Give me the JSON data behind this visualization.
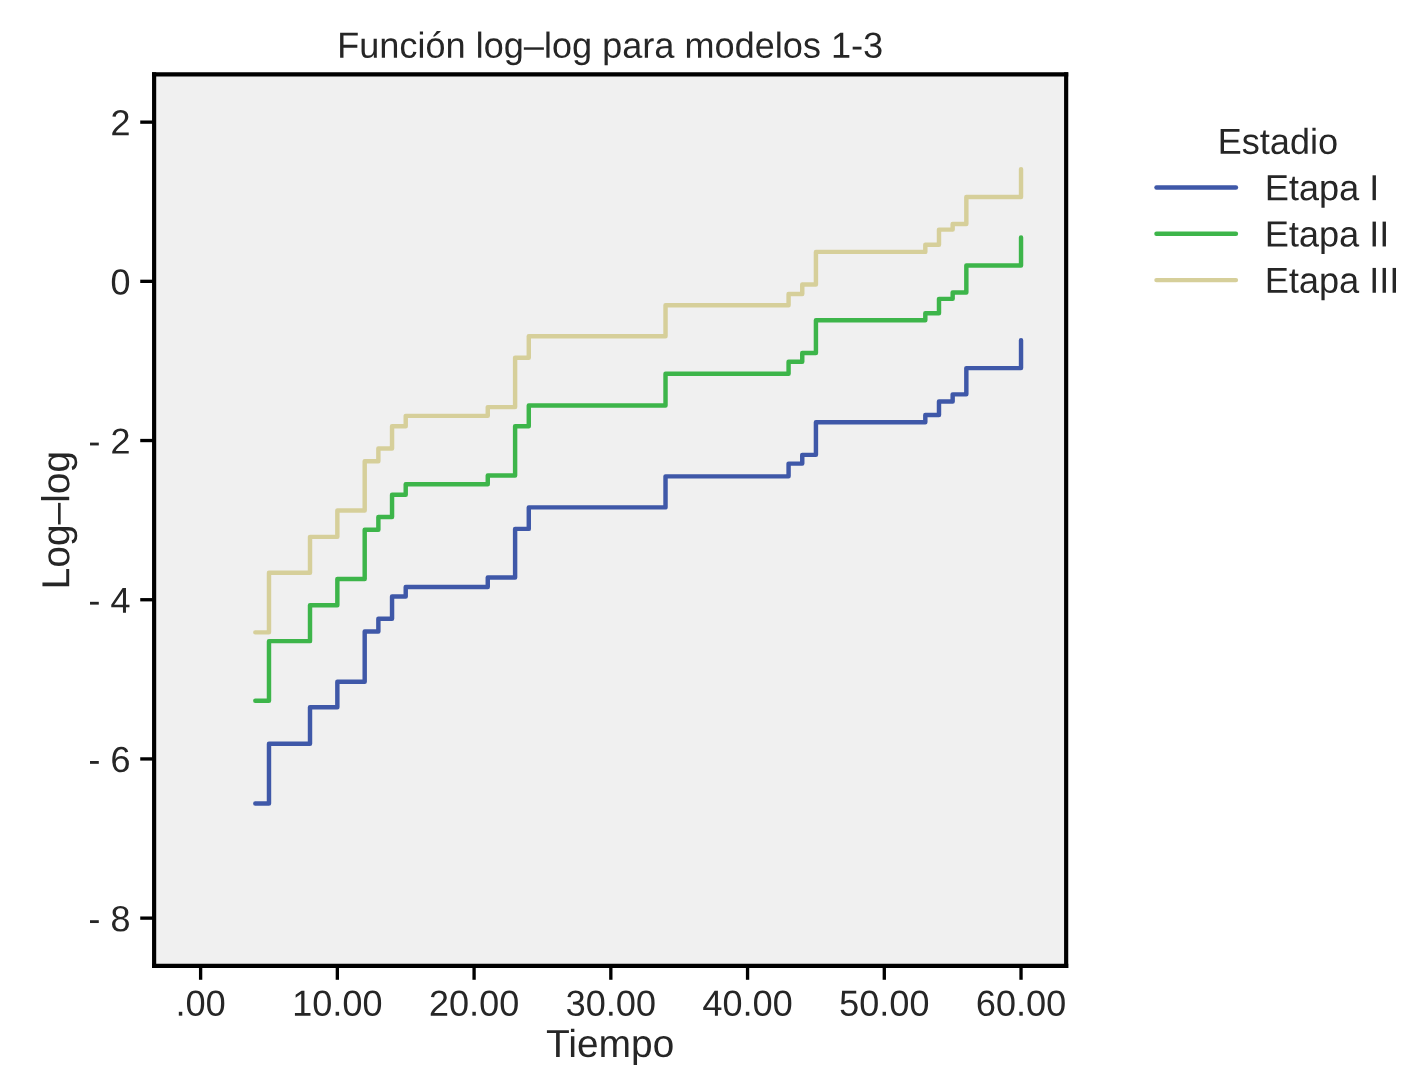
{
  "chart_data": {
    "type": "step",
    "title": "Función log–log para modelos 1-3",
    "xlabel": "Tiempo",
    "ylabel": "Log–log",
    "legend_title": "Estadio",
    "x": [
      4,
      5,
      8,
      10,
      12,
      13,
      14,
      15,
      21,
      23,
      24,
      34,
      43,
      44,
      45,
      53,
      54,
      55,
      56,
      60
    ],
    "series": [
      {
        "name": "Etapa I",
        "color": "#3f58a8",
        "values": [
          -6.56,
          -5.81,
          -5.35,
          -5.03,
          -4.4,
          -4.24,
          -3.96,
          -3.84,
          -3.72,
          -3.11,
          -2.84,
          -2.45,
          -2.29,
          -2.18,
          -1.77,
          -1.68,
          -1.51,
          -1.42,
          -1.09,
          -0.74
        ]
      },
      {
        "name": "Etapa II",
        "color": "#3db54a",
        "values": [
          -5.27,
          -4.52,
          -4.07,
          -3.74,
          -3.12,
          -2.96,
          -2.68,
          -2.55,
          -2.44,
          -1.82,
          -1.56,
          -1.16,
          -1.01,
          -0.9,
          -0.49,
          -0.4,
          -0.22,
          -0.14,
          0.2,
          0.55
        ]
      },
      {
        "name": "Etapa III",
        "color": "#d6cf9a",
        "values": [
          -4.41,
          -3.66,
          -3.21,
          -2.88,
          -2.26,
          -2.1,
          -1.82,
          -1.69,
          -1.58,
          -0.96,
          -0.69,
          -0.3,
          -0.16,
          -0.04,
          0.37,
          0.46,
          0.65,
          0.72,
          1.06,
          1.41
        ]
      }
    ],
    "xlim": [
      -3.4,
      63.3
    ],
    "ylim": [
      -8.6,
      2.6
    ],
    "xticks": [
      {
        "value": 0,
        "label": ".00"
      },
      {
        "value": 10,
        "label": "10.00"
      },
      {
        "value": 20,
        "label": "20.00"
      },
      {
        "value": 30,
        "label": "30.00"
      },
      {
        "value": 40,
        "label": "40.00"
      },
      {
        "value": 50,
        "label": "50.00"
      },
      {
        "value": 60,
        "label": "60.00"
      }
    ],
    "yticks": [
      {
        "value": -8,
        "label": "- 8"
      },
      {
        "value": -6,
        "label": "- 6"
      },
      {
        "value": -4,
        "label": "- 4"
      },
      {
        "value": -2,
        "label": "- 2"
      },
      0,
      2
    ],
    "grid": false,
    "legend": "right"
  }
}
